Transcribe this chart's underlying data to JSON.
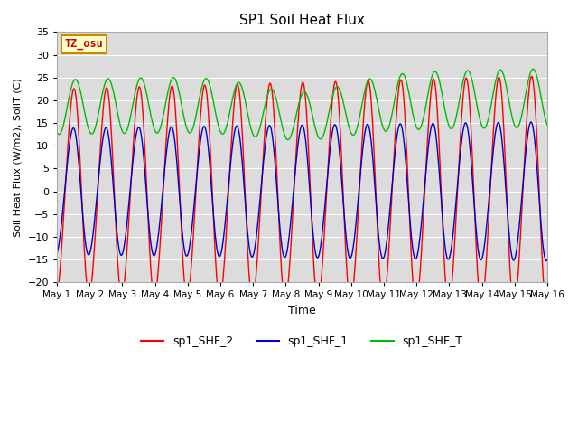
{
  "title": "SP1 Soil Heat Flux",
  "xlabel": "Time",
  "ylabel": "Soil Heat Flux (W/m2), SoilT (C)",
  "ylim": [
    -20,
    35
  ],
  "xlim_days": [
    0,
    15
  ],
  "x_ticks_days": [
    0,
    1,
    2,
    3,
    4,
    5,
    6,
    7,
    8,
    9,
    10,
    11,
    12,
    13,
    14,
    15
  ],
  "x_tick_labels": [
    "May 1",
    "May 2",
    "May 3",
    "May 4",
    "May 5",
    "May 6",
    "May 7",
    "May 8",
    "May 9",
    "May 10",
    "May 11",
    "May 12",
    "May 13",
    "May 14",
    "May 15",
    "May 16"
  ],
  "color_shf2": "#FF0000",
  "color_shf1": "#0000CC",
  "color_shfT": "#00BB00",
  "legend_labels": [
    "sp1_SHF_2",
    "sp1_SHF_1",
    "sp1_SHF_T"
  ],
  "tz_label": "TZ_osu",
  "tz_bg": "#FFFFC8",
  "tz_border": "#CC8800",
  "tz_text": "#CC0000",
  "bg_axes": "#DCDCDC",
  "bg_fig": "#FFFFFF",
  "grid_color": "#FFFFFF",
  "yticks": [
    -20,
    -15,
    -10,
    -5,
    0,
    5,
    10,
    15,
    20,
    25,
    30,
    35
  ],
  "figsize": [
    6.4,
    4.8
  ],
  "dpi": 100
}
